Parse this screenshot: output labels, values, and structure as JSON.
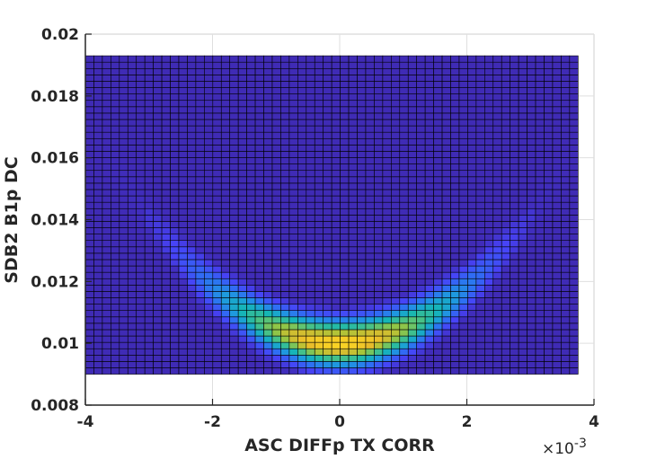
{
  "chart_data": {
    "type": "heatmap",
    "title": "",
    "xlabel": "ASC DIFFp TX CORR",
    "ylabel": "SDB2 B1p DC",
    "xlim": [
      -4,
      4
    ],
    "ylim": [
      0.008,
      0.02
    ],
    "x_ticks": [
      -4,
      -2,
      0,
      2,
      4
    ],
    "x_tick_labels": [
      "-4",
      "-2",
      "0",
      "2",
      "4"
    ],
    "y_ticks": [
      0.008,
      0.01,
      0.012,
      0.014,
      0.016,
      0.018,
      0.02
    ],
    "y_tick_labels": [
      "0.008",
      "0.01",
      "0.012",
      "0.014",
      "0.016",
      "0.018",
      "0.02"
    ],
    "x_exponent_base": "×10",
    "x_exponent_power": "-3",
    "grid": true,
    "bins": {
      "x_range": [
        -4.0,
        3.75
      ],
      "y_range": [
        0.009,
        0.0193
      ],
      "n_x": 58,
      "n_y": 50
    },
    "density_model": {
      "description": "U-shaped density; peak near x=0, y=0.0100",
      "center_x": 0.0,
      "min_y": 0.01,
      "curvature_per_unit_x2": 0.00045,
      "band_sigma_y": 0.00045,
      "spread_sigma_x": 1.2
    },
    "colormap": [
      "#3e26a8",
      "#4743f7",
      "#2f6ef4",
      "#1e9bde",
      "#15b6b5",
      "#4cc283",
      "#9cc63e",
      "#e7bb2b",
      "#fbd524"
    ]
  }
}
